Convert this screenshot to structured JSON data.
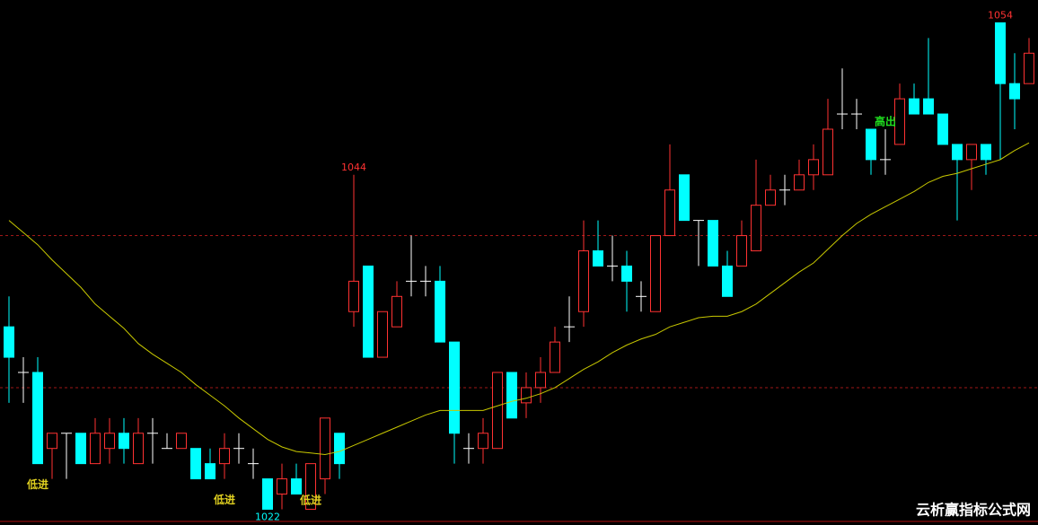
{
  "chart_data": {
    "type": "candlestick",
    "ylim": [
      1021.2,
      1055.5
    ],
    "up_color": "#ff3232",
    "down_color": "#00ffff",
    "doji_color": "#ffffff",
    "open": [
      1034,
      1031,
      1031,
      1026,
      1027,
      1027,
      1025,
      1026,
      1027,
      1025,
      1027,
      1026,
      1026,
      1026,
      1025,
      1025,
      1026,
      1025,
      1024,
      1023,
      1024,
      1022,
      1024,
      1027,
      1035,
      1038,
      1032,
      1034,
      1037,
      1037,
      1037,
      1033,
      1026,
      1026,
      1026,
      1031,
      1029,
      1030,
      1031,
      1034,
      1035,
      1039,
      1038,
      1038,
      1036,
      1035,
      1040,
      1044,
      1041,
      1041,
      1038,
      1038,
      1039,
      1042,
      1043,
      1043,
      1044,
      1044,
      1048,
      1048,
      1047,
      1045,
      1046,
      1049,
      1049,
      1048,
      1046,
      1045,
      1046,
      1054,
      1050,
      1050
    ],
    "high": [
      1036,
      1032,
      1032,
      1027,
      1027,
      1027,
      1028,
      1028,
      1028,
      1028,
      1028,
      1027,
      1027,
      1026,
      1026,
      1027,
      1027,
      1026,
      1024,
      1025,
      1025,
      1025,
      1028,
      1027,
      1044,
      1038,
      1035,
      1037,
      1040,
      1038,
      1038,
      1033,
      1027,
      1028,
      1031,
      1031,
      1031,
      1032,
      1034,
      1036,
      1041,
      1041,
      1040,
      1039,
      1037,
      1040,
      1046,
      1044,
      1041,
      1041,
      1039,
      1041,
      1045,
      1044,
      1044,
      1045,
      1046,
      1049,
      1051,
      1049,
      1047,
      1047,
      1050,
      1050,
      1053,
      1048,
      1046,
      1046,
      1046,
      1054,
      1052,
      1053
    ],
    "low": [
      1029,
      1029,
      1025,
      1024,
      1024,
      1025,
      1025,
      1025,
      1025,
      1025,
      1025,
      1026,
      1026,
      1024,
      1024,
      1024,
      1025,
      1024,
      1022,
      1022,
      1023,
      1022,
      1023,
      1024,
      1034,
      1032,
      1032,
      1034,
      1036,
      1036,
      1033,
      1025,
      1025,
      1025,
      1026,
      1028,
      1028,
      1029,
      1031,
      1033,
      1034,
      1038,
      1037,
      1035,
      1035,
      1035,
      1040,
      1041,
      1038,
      1038,
      1036,
      1038,
      1039,
      1042,
      1042,
      1043,
      1043,
      1044,
      1047,
      1047,
      1044,
      1044,
      1046,
      1048,
      1048,
      1046,
      1041,
      1043,
      1044,
      1045,
      1047,
      1050
    ],
    "close": [
      1032,
      1031,
      1025,
      1027,
      1027,
      1025,
      1027,
      1027,
      1026,
      1027,
      1027,
      1026,
      1027,
      1024,
      1024,
      1026,
      1026,
      1025,
      1022,
      1024,
      1023,
      1025,
      1028,
      1025,
      1037,
      1032,
      1035,
      1036,
      1037,
      1037,
      1033,
      1027,
      1026,
      1027,
      1031,
      1028,
      1030,
      1031,
      1033,
      1034,
      1039,
      1038,
      1038,
      1037,
      1036,
      1040,
      1043,
      1041,
      1041,
      1038,
      1036,
      1040,
      1042,
      1043,
      1043,
      1044,
      1045,
      1047,
      1048,
      1048,
      1045,
      1045,
      1049,
      1048,
      1048,
      1046,
      1045,
      1046,
      1045,
      1050,
      1049,
      1052
    ],
    "ma": {
      "color": "#c8c800",
      "values": [
        1041,
        1040.2,
        1039.4,
        1038.4,
        1037.5,
        1036.6,
        1035.5,
        1034.7,
        1033.9,
        1032.9,
        1032.2,
        1031.6,
        1031,
        1030.2,
        1029.5,
        1028.8,
        1028,
        1027.3,
        1026.6,
        1026.1,
        1025.8,
        1025.7,
        1025.6,
        1025.8,
        1026.2,
        1026.6,
        1027,
        1027.4,
        1027.8,
        1028.2,
        1028.5,
        1028.5,
        1028.5,
        1028.5,
        1028.8,
        1029.1,
        1029.3,
        1029.6,
        1030,
        1030.6,
        1031.2,
        1031.7,
        1032.3,
        1032.8,
        1033.2,
        1033.5,
        1034,
        1034.3,
        1034.6,
        1034.7,
        1034.7,
        1035,
        1035.5,
        1036.2,
        1036.9,
        1037.6,
        1038.2,
        1039.1,
        1040,
        1040.8,
        1041.4,
        1041.9,
        1042.4,
        1042.9,
        1043.5,
        1043.9,
        1044.1,
        1044.4,
        1044.7,
        1045,
        1045.6,
        1046.1
      ]
    },
    "reference_lines": {
      "color": "#a01818",
      "values": [
        1040,
        1030
      ]
    },
    "extremes": [
      {
        "index": 24,
        "value": 1044,
        "position": "above",
        "color": "#ff3232"
      },
      {
        "index": 69,
        "value": 1054,
        "position": "above",
        "color": "#ff3232"
      },
      {
        "index": 18,
        "value": 1022,
        "position": "below",
        "color": "#00ffff"
      }
    ],
    "signals": [
      {
        "text": "低进",
        "index": 2,
        "position": "below",
        "color": "#e0d020"
      },
      {
        "text": "低进",
        "index": 15,
        "position": "below",
        "color": "#e0d020"
      },
      {
        "text": "低进",
        "index": 21,
        "position": "below",
        "color": "#e0d020"
      },
      {
        "text": "高出",
        "index": 61,
        "position": "above",
        "color": "#20e020"
      }
    ],
    "watermark": "云析赢指标公式网"
  }
}
